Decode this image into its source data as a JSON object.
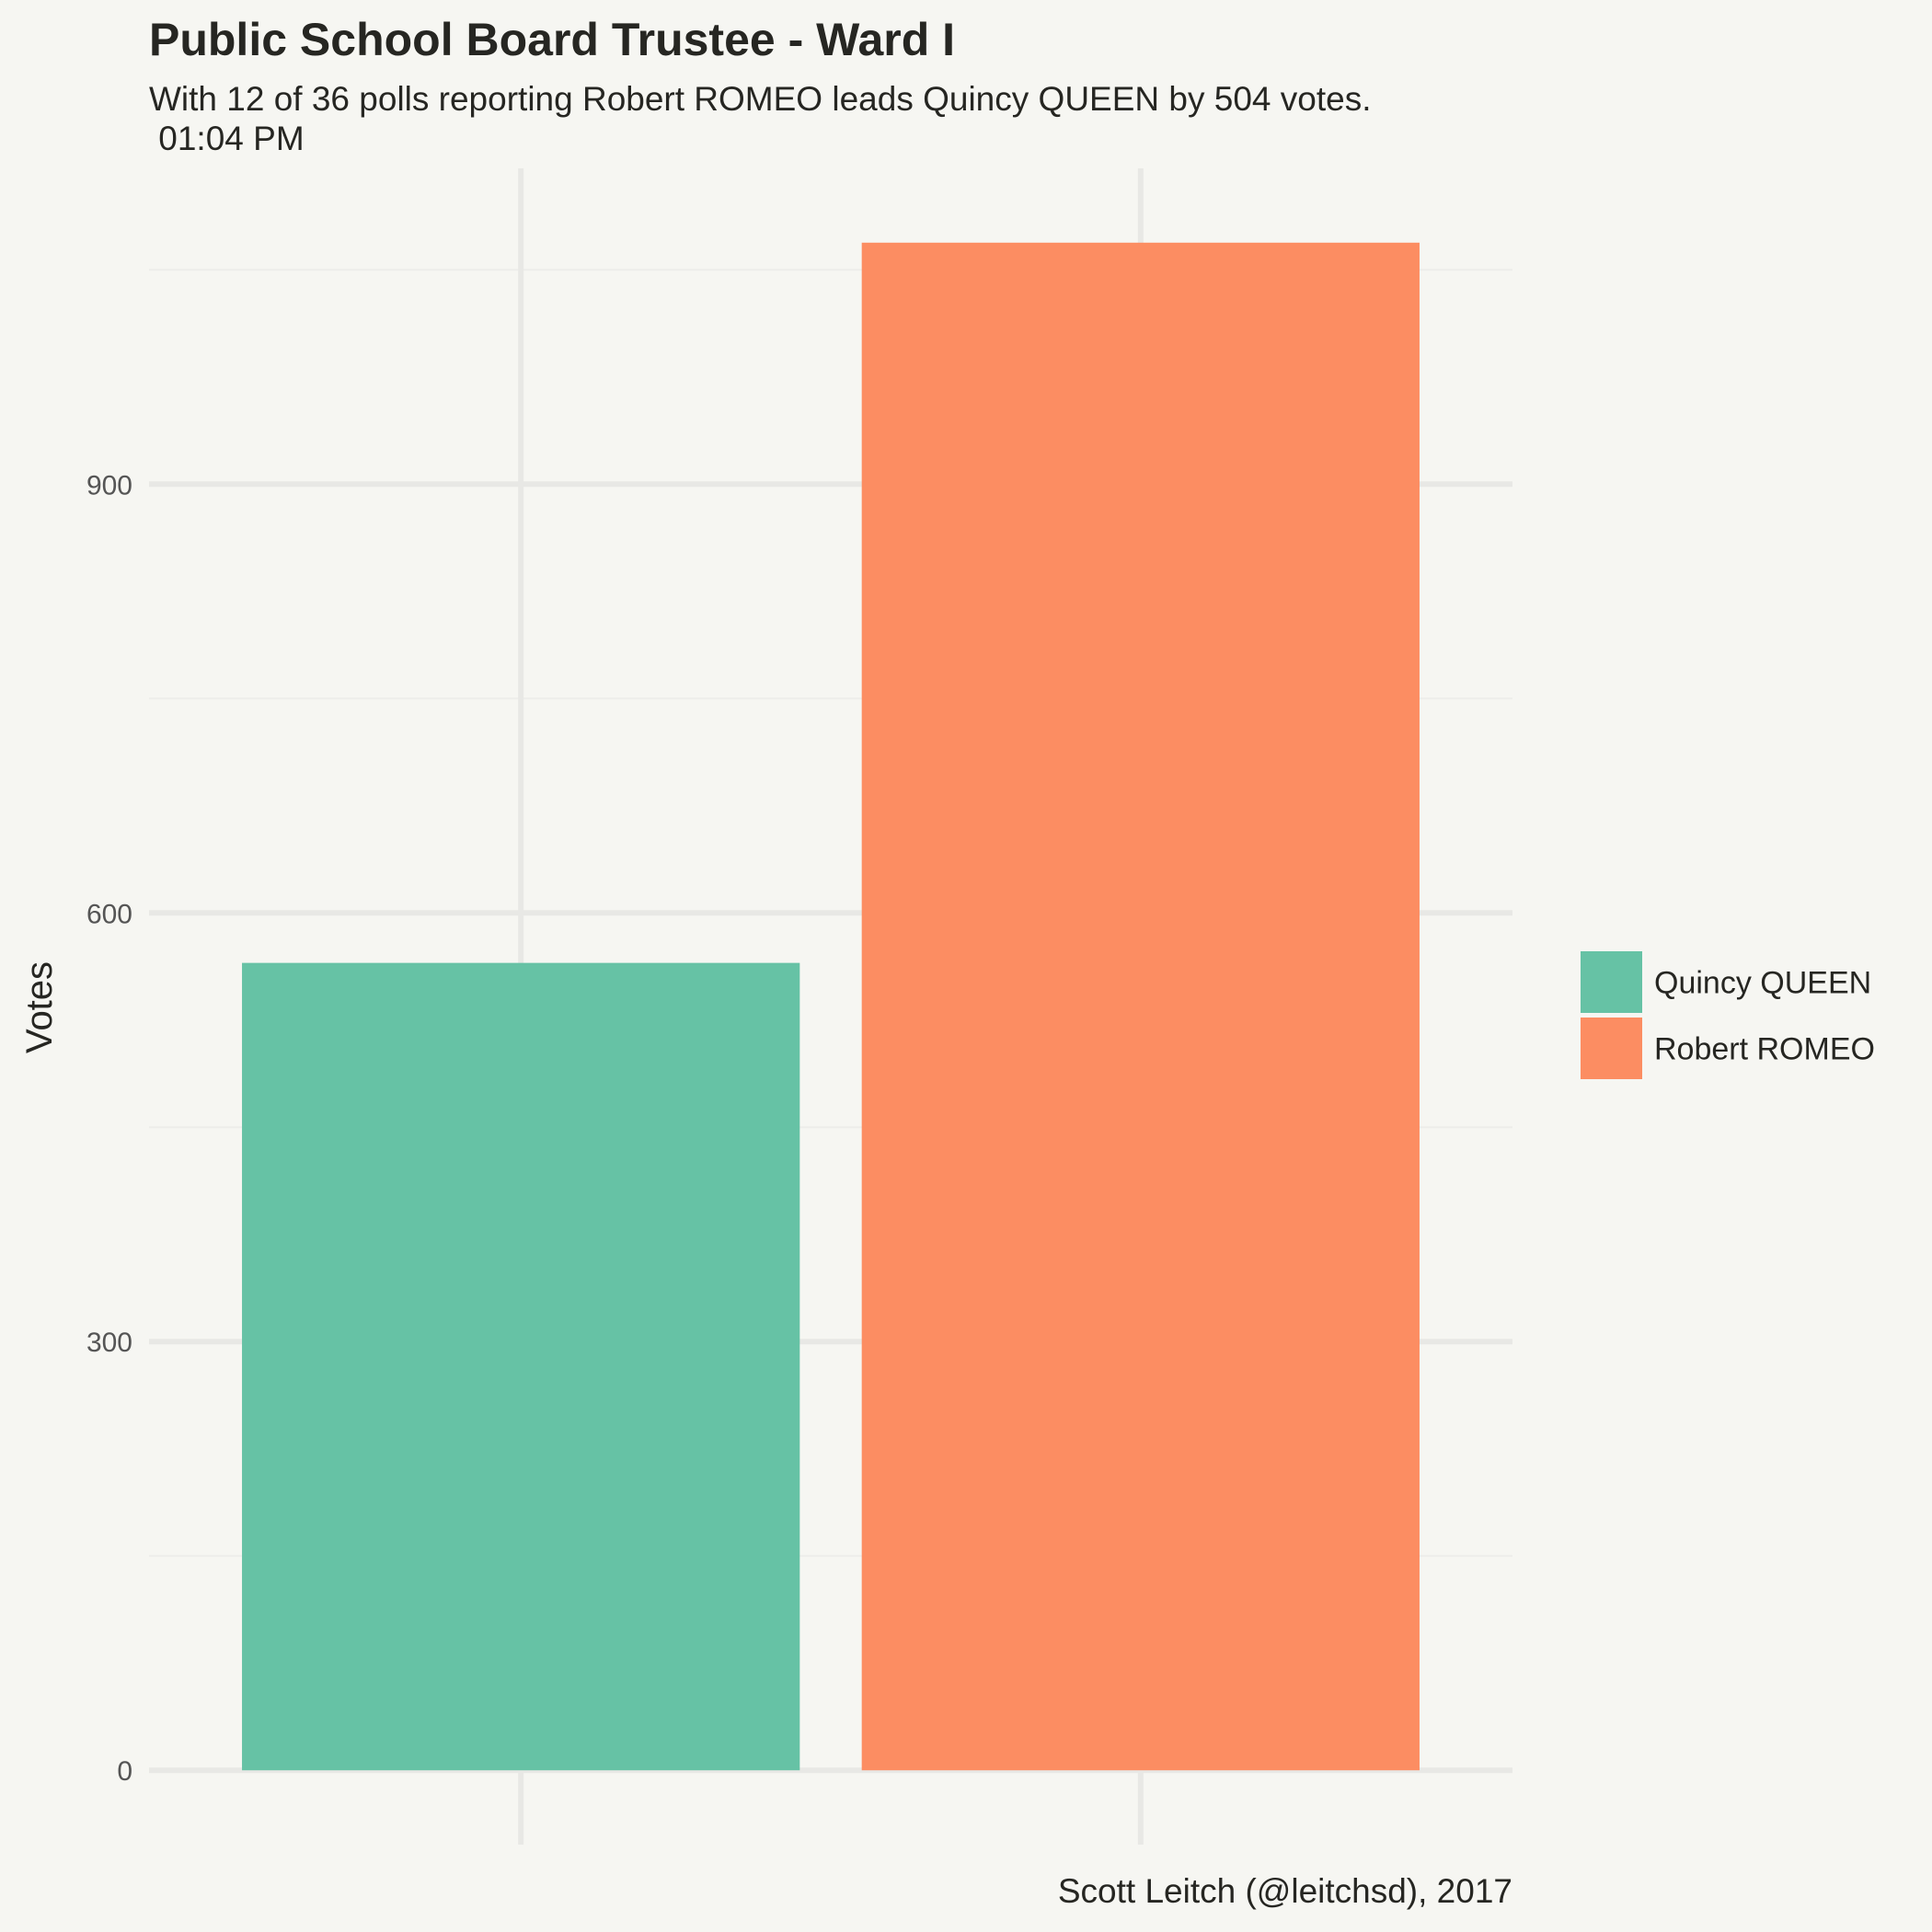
{
  "chart_data": {
    "type": "bar",
    "title": "Public School Board Trustee - Ward I",
    "subtitle_line1": "With 12 of 36 polls reporting Robert ROMEO leads Quincy QUEEN by 504 votes.",
    "subtitle_line2": " 01:04 PM",
    "ylabel": "Votes",
    "xlabel": "",
    "caption": "Scott Leitch (@leitchsd), 2017",
    "categories": [
      "Quincy QUEEN",
      "Robert ROMEO"
    ],
    "values": [
      565,
      1069
    ],
    "colors": [
      "#66c2a5",
      "#fc8d62"
    ],
    "ylim": [
      -52,
      1121
    ],
    "yticks": [
      0,
      300,
      600,
      900
    ],
    "grid": true,
    "legend": {
      "placement": "right",
      "entries": [
        "Quincy QUEEN",
        "Robert ROMEO"
      ]
    }
  }
}
